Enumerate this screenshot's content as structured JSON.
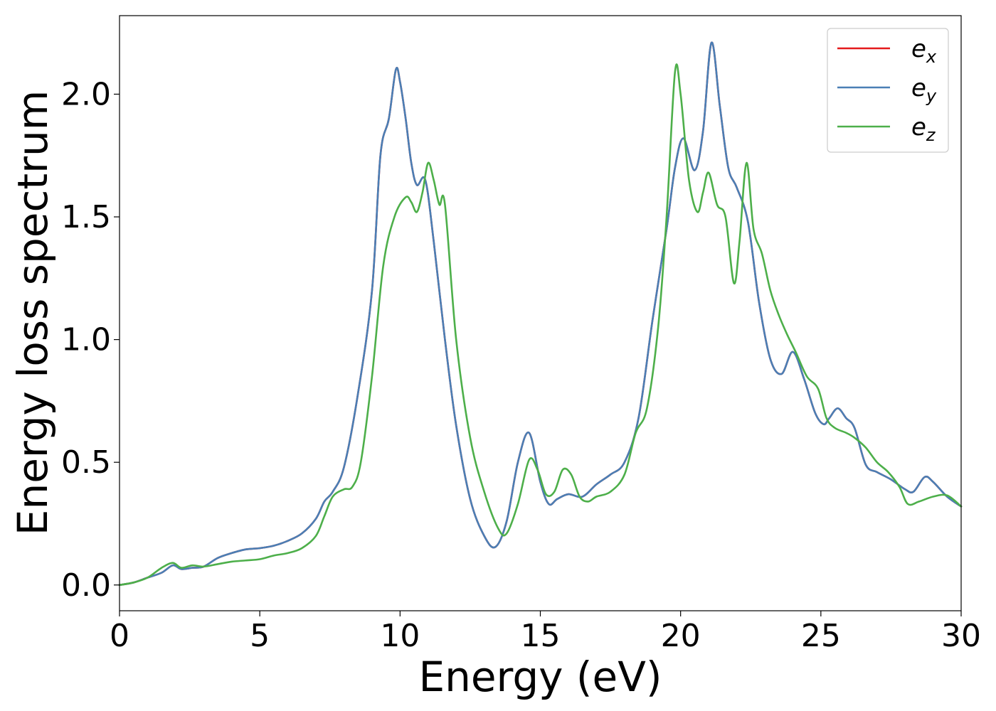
{
  "chart_data": {
    "type": "line",
    "xlabel": "Energy (eV)",
    "ylabel": "Energy loss spectrum",
    "xlim": [
      0,
      30
    ],
    "ylim": [
      -0.105,
      2.32
    ],
    "xticks": [
      0,
      5,
      10,
      15,
      20,
      25,
      30
    ],
    "xtick_labels": [
      "0",
      "5",
      "10",
      "15",
      "20",
      "25",
      "30"
    ],
    "yticks": [
      0.0,
      0.5,
      1.0,
      1.5,
      2.0
    ],
    "ytick_labels": [
      "0.0",
      "0.5",
      "1.0",
      "1.5",
      "2.0"
    ],
    "grid": false,
    "legend_position": "top-right",
    "series": [
      {
        "name": "e_x",
        "legend_base": "e",
        "legend_sub": "x",
        "color": "#e41a1c",
        "x": [
          0,
          0.5,
          1,
          1.5,
          1.9,
          2.2,
          2.6,
          3,
          3.5,
          4,
          4.5,
          5,
          5.5,
          6,
          6.5,
          7,
          7.3,
          7.6,
          8,
          8.5,
          9,
          9.3,
          9.6,
          9.85,
          10,
          10.2,
          10.4,
          10.6,
          10.9,
          11.2,
          11.6,
          12,
          12.5,
          13,
          13.4,
          13.8,
          14.2,
          14.6,
          15,
          15.3,
          15.6,
          16,
          16.5,
          17,
          17.5,
          18,
          18.5,
          19,
          19.5,
          19.8,
          20.1,
          20.5,
          20.8,
          21.1,
          21.4,
          21.7,
          22,
          22.4,
          22.8,
          23.2,
          23.6,
          24,
          24.4,
          24.8,
          25.1,
          25.3,
          25.6,
          25.9,
          26.2,
          26.6,
          27,
          27.5,
          28,
          28.3,
          28.7,
          29,
          29.5,
          30
        ],
        "y": [
          0,
          0.01,
          0.03,
          0.05,
          0.08,
          0.065,
          0.07,
          0.075,
          0.11,
          0.13,
          0.145,
          0.15,
          0.16,
          0.18,
          0.21,
          0.27,
          0.34,
          0.38,
          0.48,
          0.78,
          1.2,
          1.75,
          1.9,
          2.1,
          2.05,
          1.9,
          1.72,
          1.63,
          1.65,
          1.4,
          1.0,
          0.65,
          0.35,
          0.2,
          0.155,
          0.26,
          0.5,
          0.62,
          0.42,
          0.33,
          0.35,
          0.37,
          0.36,
          0.41,
          0.45,
          0.5,
          0.68,
          1.08,
          1.45,
          1.7,
          1.82,
          1.69,
          1.85,
          2.21,
          1.95,
          1.7,
          1.62,
          1.48,
          1.15,
          0.92,
          0.86,
          0.95,
          0.84,
          0.7,
          0.655,
          0.68,
          0.72,
          0.68,
          0.64,
          0.49,
          0.46,
          0.43,
          0.39,
          0.38,
          0.44,
          0.42,
          0.36,
          0.32
        ]
      },
      {
        "name": "e_y",
        "legend_base": "e",
        "legend_sub": "y",
        "color": "#4a7fb5",
        "x": [
          0,
          0.5,
          1,
          1.5,
          1.9,
          2.2,
          2.6,
          3,
          3.5,
          4,
          4.5,
          5,
          5.5,
          6,
          6.5,
          7,
          7.3,
          7.6,
          8,
          8.5,
          9,
          9.3,
          9.6,
          9.85,
          10,
          10.2,
          10.4,
          10.6,
          10.9,
          11.2,
          11.6,
          12,
          12.5,
          13,
          13.4,
          13.8,
          14.2,
          14.6,
          15,
          15.3,
          15.6,
          16,
          16.5,
          17,
          17.5,
          18,
          18.5,
          19,
          19.5,
          19.8,
          20.1,
          20.5,
          20.8,
          21.1,
          21.4,
          21.7,
          22,
          22.4,
          22.8,
          23.2,
          23.6,
          24,
          24.4,
          24.8,
          25.1,
          25.3,
          25.6,
          25.9,
          26.2,
          26.6,
          27,
          27.5,
          28,
          28.3,
          28.7,
          29,
          29.5,
          30
        ],
        "y": [
          0,
          0.01,
          0.03,
          0.05,
          0.08,
          0.065,
          0.07,
          0.075,
          0.11,
          0.13,
          0.145,
          0.15,
          0.16,
          0.18,
          0.21,
          0.27,
          0.34,
          0.38,
          0.48,
          0.78,
          1.2,
          1.75,
          1.9,
          2.1,
          2.05,
          1.9,
          1.72,
          1.63,
          1.65,
          1.4,
          1.0,
          0.65,
          0.35,
          0.2,
          0.155,
          0.26,
          0.5,
          0.62,
          0.42,
          0.33,
          0.35,
          0.37,
          0.36,
          0.41,
          0.45,
          0.5,
          0.68,
          1.08,
          1.45,
          1.7,
          1.82,
          1.69,
          1.85,
          2.21,
          1.95,
          1.7,
          1.62,
          1.48,
          1.15,
          0.92,
          0.86,
          0.95,
          0.84,
          0.7,
          0.655,
          0.68,
          0.72,
          0.68,
          0.64,
          0.49,
          0.46,
          0.43,
          0.39,
          0.38,
          0.44,
          0.42,
          0.36,
          0.32
        ]
      },
      {
        "name": "e_z",
        "legend_base": "e",
        "legend_sub": "z",
        "color": "#4daf4a",
        "x": [
          0,
          0.5,
          1,
          1.5,
          1.9,
          2.2,
          2.6,
          3,
          3.5,
          4,
          4.5,
          5,
          5.5,
          6,
          6.5,
          7,
          7.3,
          7.6,
          8,
          8.3,
          8.6,
          9,
          9.4,
          9.8,
          10.2,
          10.4,
          10.6,
          10.8,
          11,
          11.2,
          11.4,
          11.6,
          12,
          12.5,
          13,
          13.5,
          13.8,
          14.2,
          14.6,
          14.9,
          15.2,
          15.5,
          15.8,
          16.1,
          16.4,
          16.7,
          17,
          17.5,
          18,
          18.4,
          18.8,
          19.2,
          19.5,
          19.8,
          20,
          20.3,
          20.6,
          20.8,
          21,
          21.3,
          21.6,
          21.9,
          22.1,
          22.35,
          22.6,
          22.9,
          23.2,
          23.5,
          23.8,
          24.1,
          24.5,
          24.9,
          25.2,
          25.5,
          25.9,
          26.2,
          26.6,
          27,
          27.4,
          27.8,
          28.1,
          28.5,
          29,
          29.5,
          30
        ],
        "y": [
          0,
          0.01,
          0.03,
          0.07,
          0.09,
          0.07,
          0.08,
          0.075,
          0.085,
          0.095,
          0.1,
          0.105,
          0.12,
          0.13,
          0.15,
          0.2,
          0.28,
          0.36,
          0.39,
          0.4,
          0.5,
          0.85,
          1.3,
          1.5,
          1.58,
          1.56,
          1.52,
          1.6,
          1.72,
          1.65,
          1.55,
          1.55,
          1.0,
          0.6,
          0.38,
          0.23,
          0.21,
          0.33,
          0.51,
          0.47,
          0.37,
          0.38,
          0.47,
          0.45,
          0.36,
          0.34,
          0.36,
          0.38,
          0.45,
          0.62,
          0.72,
          1.05,
          1.5,
          2.09,
          2.0,
          1.65,
          1.52,
          1.6,
          1.68,
          1.55,
          1.5,
          1.23,
          1.4,
          1.72,
          1.45,
          1.35,
          1.2,
          1.1,
          1.02,
          0.95,
          0.85,
          0.8,
          0.68,
          0.64,
          0.62,
          0.6,
          0.56,
          0.5,
          0.46,
          0.4,
          0.33,
          0.34,
          0.36,
          0.365,
          0.32
        ]
      }
    ]
  }
}
